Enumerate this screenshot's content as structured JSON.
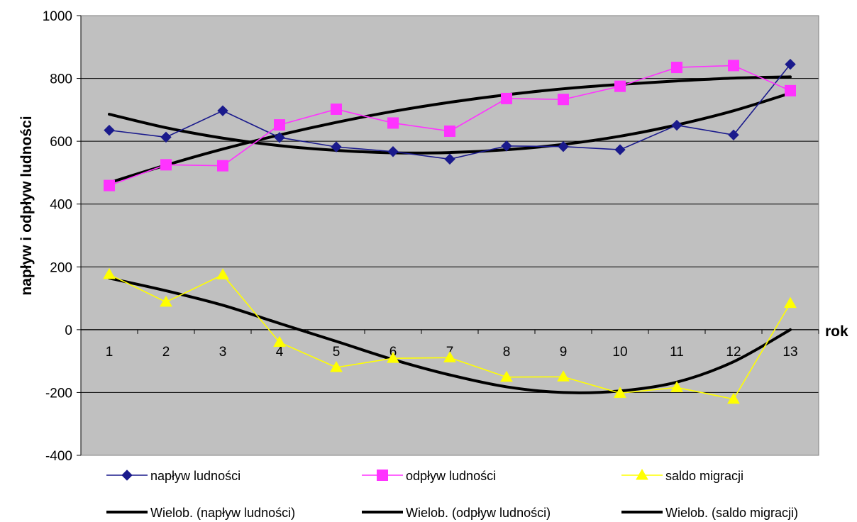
{
  "chart_data": {
    "type": "line",
    "title": "",
    "xlabel": "rok",
    "ylabel": "napływ i odpływ ludności",
    "categories": [
      "1",
      "2",
      "3",
      "4",
      "5",
      "6",
      "7",
      "8",
      "9",
      "10",
      "11",
      "12",
      "13"
    ],
    "ylim": [
      -400,
      1000
    ],
    "yticks": [
      -400,
      -200,
      0,
      200,
      400,
      600,
      800,
      1000
    ],
    "grid": true,
    "legend_position": "bottom",
    "series": [
      {
        "name": "napływ ludności",
        "marker": "diamond",
        "color": "#1a1a8c",
        "values": [
          635,
          613,
          697,
          612,
          582,
          567,
          543,
          585,
          583,
          573,
          651,
          620,
          845
        ]
      },
      {
        "name": "odpływ ludności",
        "marker": "square",
        "color": "#ff33ff",
        "values": [
          459,
          525,
          522,
          652,
          702,
          658,
          632,
          736,
          733,
          775,
          835,
          841,
          761
        ]
      },
      {
        "name": "saldo migracji",
        "marker": "triangle",
        "color": "#ffff00",
        "values": [
          176,
          88,
          175,
          -40,
          -120,
          -91,
          -89,
          -151,
          -150,
          -202,
          -184,
          -221,
          84
        ]
      }
    ],
    "trendlines": [
      {
        "name": "Wielob. (napływ ludności)",
        "color": "#000000",
        "values": [
          686,
          643,
          610,
          586,
          571,
          563,
          564,
          573,
          590,
          616,
          652,
          697,
          753
        ]
      },
      {
        "name": "Wielob. (odpływ ludności)",
        "color": "#000000",
        "values": [
          468,
          524,
          575,
          620,
          660,
          695,
          724,
          748,
          767,
          781,
          792,
          801,
          805
        ]
      },
      {
        "name": "Wielob. (saldo migracji)",
        "color": "#000000",
        "values": [
          164,
          124,
          78,
          20,
          -37,
          -95,
          -144,
          -182,
          -200,
          -195,
          -167,
          -102,
          0
        ]
      }
    ]
  }
}
